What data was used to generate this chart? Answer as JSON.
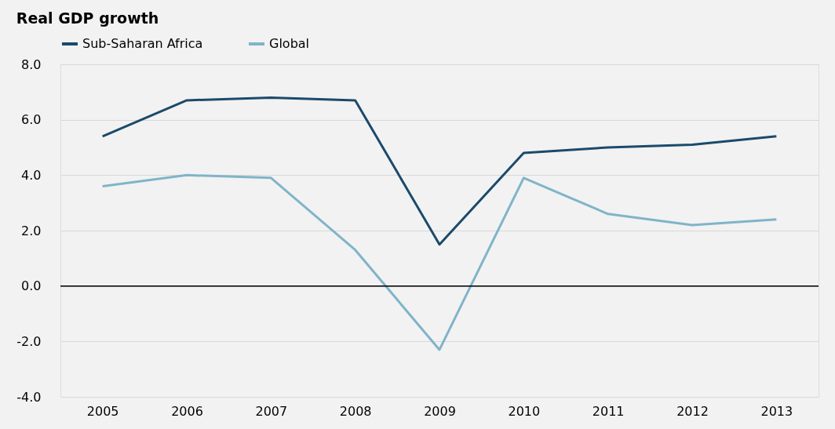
{
  "chart_data": {
    "type": "line",
    "title": "Real GDP growth",
    "categories": [
      "2005",
      "2006",
      "2007",
      "2008",
      "2009",
      "2010",
      "2011",
      "2012",
      "2013"
    ],
    "series": [
      {
        "name": "Sub-Saharan Africa",
        "color": "#1b4a6b",
        "values": [
          5.4,
          6.7,
          6.8,
          6.7,
          1.5,
          4.8,
          5.0,
          5.1,
          5.4
        ]
      },
      {
        "name": "Global",
        "color": "#80b4c8",
        "values": [
          3.6,
          4.0,
          3.9,
          1.3,
          -2.3,
          3.9,
          2.6,
          2.2,
          2.4
        ]
      }
    ],
    "ylim": [
      -4,
      8
    ],
    "yticks": [
      {
        "value": -4,
        "label": "-4.0"
      },
      {
        "value": -2,
        "label": "-2.0"
      },
      {
        "value": 0,
        "label": "0.0"
      },
      {
        "value": 2,
        "label": "2.0"
      },
      {
        "value": 4,
        "label": "4.0"
      },
      {
        "value": 6,
        "label": "6.0"
      },
      {
        "value": 8,
        "label": "8.0"
      }
    ],
    "ref_lines": [
      {
        "axis": "y",
        "value": 0,
        "color": "#000000"
      }
    ],
    "grid": "y",
    "legend": "top",
    "marker": "none",
    "line_style": "solid"
  }
}
